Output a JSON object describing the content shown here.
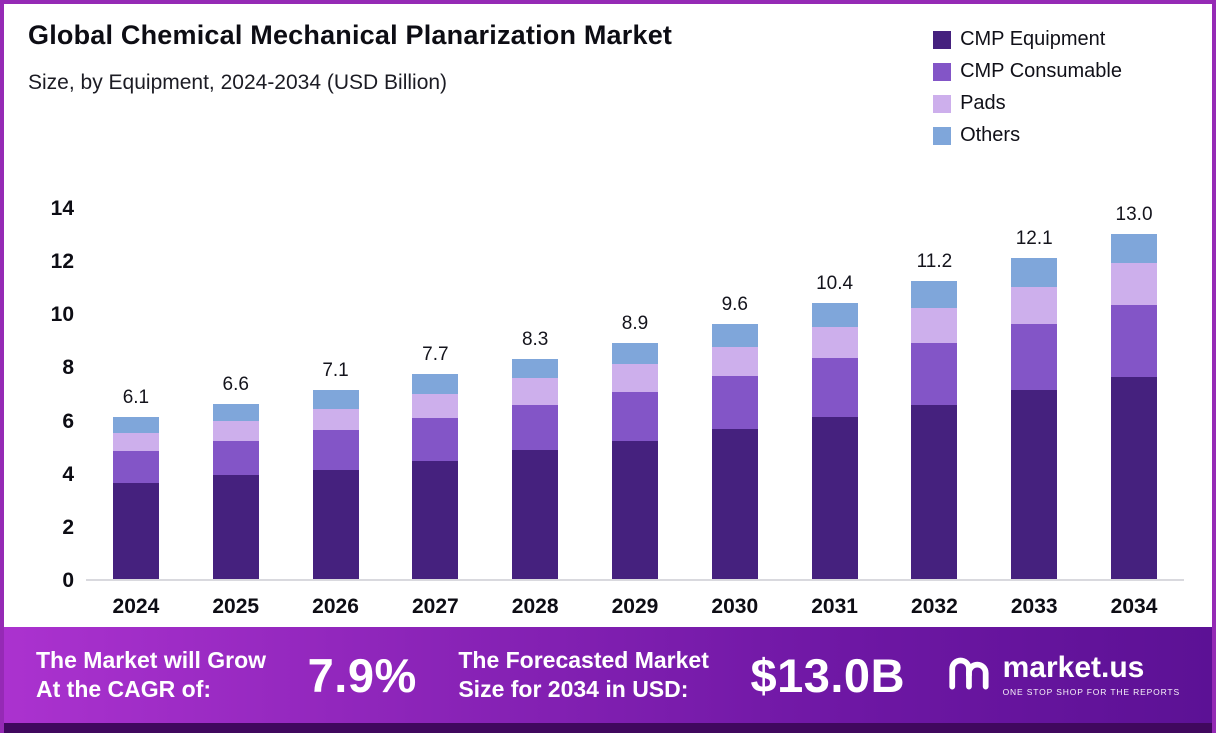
{
  "title": "Global Chemical Mechanical Planarization Market",
  "subtitle": "Size, by Equipment, 2024-2034 (USD Billion)",
  "chart_data": {
    "type": "stacked-bar",
    "title": "Global Chemical Mechanical Planarization Market Size, by Equipment, 2024-2034 (USD Billion)",
    "categories": [
      "2024",
      "2025",
      "2026",
      "2027",
      "2028",
      "2029",
      "2030",
      "2031",
      "2032",
      "2033",
      "2034"
    ],
    "series": [
      {
        "name": "CMP Equipment",
        "color": "#45217E",
        "values": [
          3.6,
          3.9,
          4.1,
          4.45,
          4.85,
          5.2,
          5.65,
          6.1,
          6.55,
          7.1,
          7.6
        ]
      },
      {
        "name": "CMP Consumable",
        "color": "#8355C7",
        "values": [
          1.2,
          1.3,
          1.5,
          1.6,
          1.7,
          1.85,
          2.0,
          2.2,
          2.35,
          2.5,
          2.7
        ]
      },
      {
        "name": "Pads",
        "color": "#CDAFEC",
        "values": [
          0.7,
          0.75,
          0.8,
          0.9,
          1.0,
          1.05,
          1.1,
          1.2,
          1.3,
          1.4,
          1.6
        ]
      },
      {
        "name": "Others",
        "color": "#7FA6DA",
        "values": [
          0.6,
          0.65,
          0.7,
          0.75,
          0.75,
          0.8,
          0.85,
          0.9,
          1.0,
          1.1,
          1.1
        ]
      }
    ],
    "totals": [
      6.1,
      6.6,
      7.1,
      7.7,
      8.3,
      8.9,
      9.6,
      10.4,
      11.2,
      12.1,
      13.0
    ],
    "ylim": [
      0,
      14
    ],
    "yticks": [
      0,
      2,
      4,
      6,
      8,
      10,
      12,
      14
    ],
    "xlabel": "",
    "ylabel": "",
    "grid": false,
    "legend_position": "top-right"
  },
  "banner": {
    "cagr_label_line1": "The Market will Grow",
    "cagr_label_line2": "At the CAGR of:",
    "cagr_value": "7.9%",
    "forecast_label_line1": "The Forecasted Market",
    "forecast_label_line2": "Size for 2034 in USD:",
    "forecast_value": "$13.0B",
    "logo_text": "market.us",
    "logo_tagline": "ONE STOP SHOP FOR THE REPORTS"
  }
}
